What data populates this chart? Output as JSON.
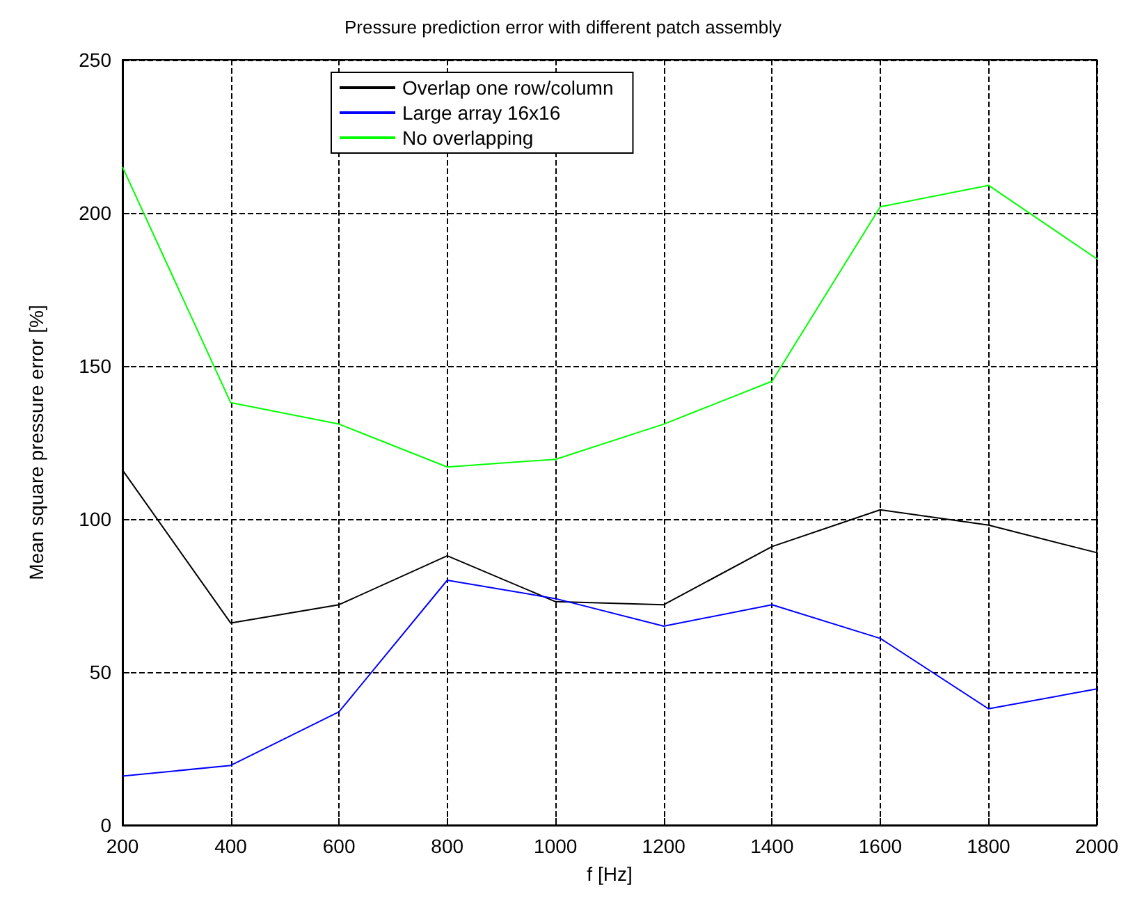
{
  "chart_data": {
    "type": "line",
    "title": "Pressure prediction error with different patch assembly",
    "xlabel": "f [Hz]",
    "ylabel": "Mean square pressure error [%]",
    "x": [
      200,
      400,
      600,
      800,
      1000,
      1200,
      1400,
      1600,
      1800,
      2000
    ],
    "series": [
      {
        "name": "Overlap one row/column",
        "color": "#000000",
        "values": [
          116,
          66,
          72,
          88,
          73,
          72,
          91,
          103,
          98,
          89
        ]
      },
      {
        "name": "Large array 16x16",
        "color": "#0000ff",
        "values": [
          16,
          19.5,
          37,
          80,
          74,
          65,
          72,
          61,
          38,
          44.5
        ]
      },
      {
        "name": "No overlapping",
        "color": "#00ff00",
        "values": [
          215,
          138,
          131,
          117,
          119.5,
          131,
          145,
          202,
          209,
          185
        ]
      }
    ],
    "xlim": [
      200,
      2000
    ],
    "xticks": [
      200,
      400,
      600,
      800,
      1000,
      1200,
      1400,
      1600,
      1800,
      2000
    ],
    "ylim": [
      0,
      250
    ],
    "yticks": [
      0,
      50,
      100,
      150,
      200,
      250
    ],
    "grid": true,
    "legend": "top",
    "marker": "none",
    "line_style": "solid"
  }
}
